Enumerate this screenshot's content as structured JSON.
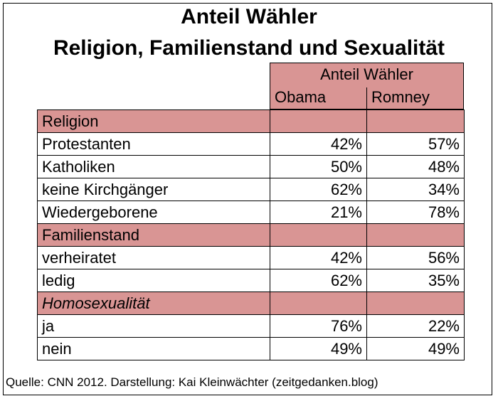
{
  "title_line1": "Anteil Wähler",
  "title_line2": "Religion, Familienstand und Sexualität",
  "source": "Quelle: CNN 2012. Darstellung: Kai Kleinwächter (zeitgedanken.blog)",
  "chart_data": {
    "type": "table",
    "column_group": "Anteil Wähler",
    "columns": [
      "Obama",
      "Romney"
    ],
    "sections": [
      {
        "name": "Religion",
        "italic": false,
        "rows": [
          {
            "label": "Protestanten",
            "values": [
              "42%",
              "57%"
            ]
          },
          {
            "label": "Katholiken",
            "values": [
              "50%",
              "48%"
            ]
          },
          {
            "label": "keine Kirchgänger",
            "values": [
              "62%",
              "34%"
            ]
          },
          {
            "label": "Wiedergeborene",
            "values": [
              "21%",
              "78%"
            ]
          }
        ]
      },
      {
        "name": "Familienstand",
        "italic": false,
        "rows": [
          {
            "label": "verheiratet",
            "values": [
              "42%",
              "56%"
            ]
          },
          {
            "label": "ledig",
            "values": [
              "62%",
              "35%"
            ]
          }
        ]
      },
      {
        "name": "Homosexualität",
        "italic": true,
        "rows": [
          {
            "label": "ja",
            "values": [
              "76%",
              "22%"
            ]
          },
          {
            "label": "nein",
            "values": [
              "49%",
              "49%"
            ]
          }
        ]
      }
    ],
    "colors": {
      "header_fill": "#d99594",
      "border": "#000000"
    }
  }
}
